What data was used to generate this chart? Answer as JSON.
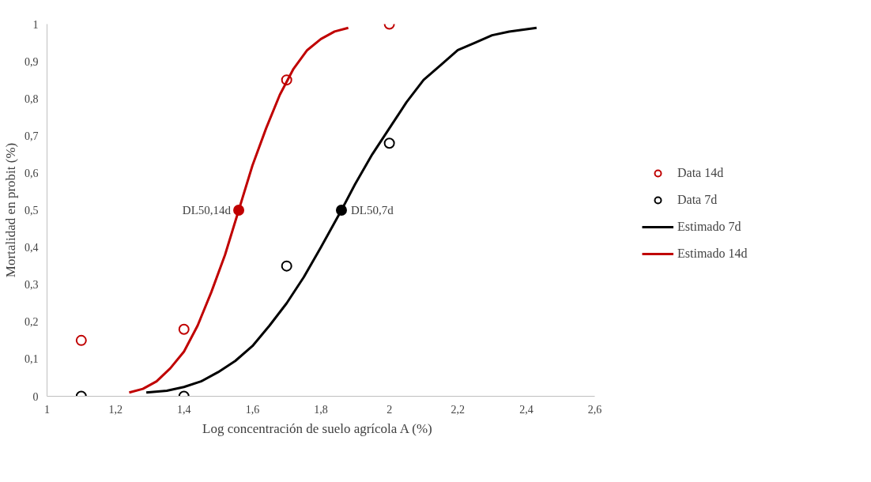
{
  "chart_data": {
    "type": "scatter",
    "xlabel": "Log concentración de suelo agrícola A (%)",
    "ylabel": "Mortalidad en probit (%)",
    "xlim": [
      1,
      2.6
    ],
    "xticks": [
      1,
      {
        "value": 1.2,
        "label": "1,2"
      },
      {
        "value": 1.4,
        "label": "1,4"
      },
      {
        "value": 1.6,
        "label": "1,6"
      },
      {
        "value": 1.8,
        "label": "1,8"
      },
      2,
      {
        "value": 2.2,
        "label": "2,2"
      },
      {
        "value": 2.4,
        "label": "2,4"
      },
      {
        "value": 2.6,
        "label": "2,6"
      }
    ],
    "ylim": [
      0,
      1
    ],
    "yticks": [
      0,
      {
        "value": 0.1,
        "label": "0,1"
      },
      {
        "value": 0.2,
        "label": "0,2"
      },
      {
        "value": 0.3,
        "label": "0,3"
      },
      {
        "value": 0.4,
        "label": "0,4"
      },
      {
        "value": 0.5,
        "label": "0,5"
      },
      {
        "value": 0.6,
        "label": "0,6"
      },
      {
        "value": 0.7,
        "label": "0,7"
      },
      {
        "value": 0.8,
        "label": "0,8"
      },
      {
        "value": 0.9,
        "label": "0,9"
      },
      1
    ],
    "grid": false,
    "legend": "right",
    "series": [
      {
        "name": "Data 14d",
        "marker": "circle",
        "color": "#c00000",
        "x": [
          1.1,
          1.4,
          1.7,
          2.0
        ],
        "values": [
          0.15,
          0.18,
          0.85,
          1.0
        ]
      },
      {
        "name": "Data 7d",
        "marker": "circle",
        "color": "#000000",
        "x": [
          1.1,
          1.4,
          1.7,
          2.0
        ],
        "values": [
          0,
          0,
          0.35,
          0.68
        ]
      },
      {
        "name": "Estimado 7d",
        "type": "line",
        "marker": "none",
        "color": "#000000",
        "x": [
          1.29,
          1.35,
          1.4,
          1.45,
          1.5,
          1.55,
          1.6,
          1.65,
          1.7,
          1.75,
          1.8,
          1.86,
          1.9,
          1.95,
          2.0,
          2.05,
          2.1,
          2.15,
          2.2,
          2.25,
          2.3,
          2.35,
          2.43
        ],
        "values": [
          0.01,
          0.015,
          0.025,
          0.04,
          0.065,
          0.095,
          0.135,
          0.19,
          0.25,
          0.32,
          0.4,
          0.5,
          0.57,
          0.65,
          0.72,
          0.79,
          0.85,
          0.89,
          0.93,
          0.95,
          0.97,
          0.98,
          0.99
        ]
      },
      {
        "name": "Estimado 14d",
        "type": "line",
        "marker": "none",
        "color": "#c00000",
        "x": [
          1.24,
          1.28,
          1.32,
          1.36,
          1.4,
          1.44,
          1.48,
          1.52,
          1.56,
          1.6,
          1.64,
          1.68,
          1.72,
          1.76,
          1.8,
          1.84,
          1.88
        ],
        "values": [
          0.01,
          0.02,
          0.04,
          0.075,
          0.12,
          0.19,
          0.28,
          0.38,
          0.5,
          0.62,
          0.72,
          0.81,
          0.88,
          0.93,
          0.96,
          0.98,
          0.99
        ]
      },
      {
        "marker": "circle",
        "color": "#c00000",
        "x": [
          1.56
        ],
        "values": [
          0.5
        ]
      },
      {
        "marker": "circle",
        "color": "#000000",
        "x": [
          1.86
        ],
        "values": [
          0.5
        ]
      }
    ],
    "annotations": [
      {
        "text": "DL50,14d",
        "x": 1.56,
        "y": 0.5
      },
      {
        "text": "DL50,7d",
        "x": 1.86,
        "y": 0.5
      }
    ]
  }
}
